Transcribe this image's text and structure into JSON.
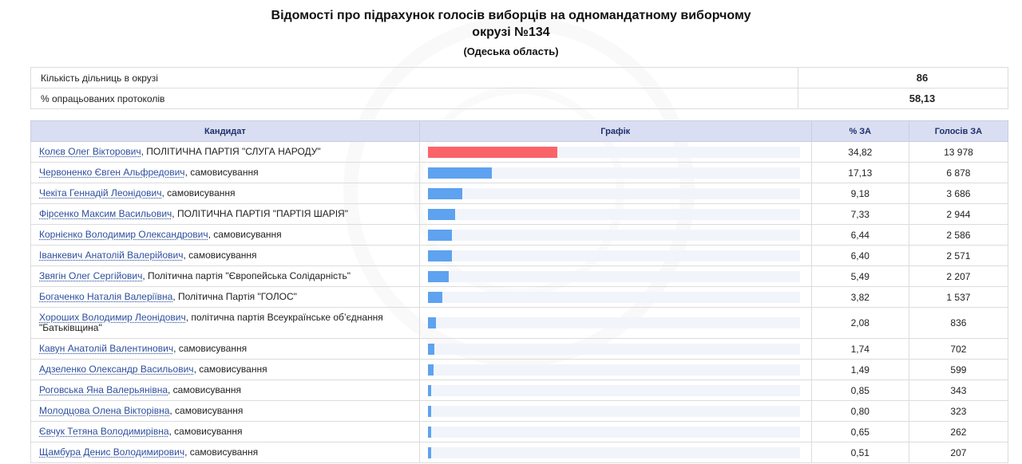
{
  "header": {
    "title": "Відомості про підрахунок голосів виборців на одномандатному виборчому окрузі №134",
    "region": "(Одеська область)"
  },
  "summary": [
    {
      "label": "Кількість дільниць в окрузі",
      "value": "86"
    },
    {
      "label": "% опрацьованих протоколів",
      "value": "58,13"
    }
  ],
  "columns": {
    "candidate": "Кандидат",
    "graph": "Графік",
    "pct": "% ЗА",
    "votes": "Голосів ЗА"
  },
  "colors": {
    "leader_bar": "#fa6469",
    "bar": "#5ea2f0",
    "header_bg": "#d9def2"
  },
  "candidates": [
    {
      "name": "Колєв Олег Вікторович",
      "party": ", ПОЛІТИЧНА ПАРТІЯ \"СЛУГА НАРОДУ\"",
      "pct": "34,82",
      "votes": "13 978",
      "share": 34.82
    },
    {
      "name": "Червоненко Євген Альфредович",
      "party": ", самовисування",
      "pct": "17,13",
      "votes": "6 878",
      "share": 17.13
    },
    {
      "name": "Чекіта Геннадій Леонідович",
      "party": ", самовисування",
      "pct": "9,18",
      "votes": "3 686",
      "share": 9.18
    },
    {
      "name": "Фірсенко Максим Васильович",
      "party": ", ПОЛІТИЧНА ПАРТІЯ \"ПАРТІЯ ШАРІЯ\"",
      "pct": "7,33",
      "votes": "2 944",
      "share": 7.33
    },
    {
      "name": "Корнієнко Володимир Олександрович",
      "party": ", самовисування",
      "pct": "6,44",
      "votes": "2 586",
      "share": 6.44
    },
    {
      "name": "Іванкевич Анатолій Валерійович",
      "party": ", самовисування",
      "pct": "6,40",
      "votes": "2 571",
      "share": 6.4
    },
    {
      "name": "Звягін Олег Сергійович",
      "party": ", Політична партія \"Європейська Солідарність\"",
      "pct": "5,49",
      "votes": "2 207",
      "share": 5.49
    },
    {
      "name": "Богаченко Наталія Валеріївна",
      "party": ", Політична Партія \"ГОЛОС\"",
      "pct": "3,82",
      "votes": "1 537",
      "share": 3.82
    },
    {
      "name": "Хороших Володимир Леонідович",
      "party": ", політична партія Всеукраїнське об’єднання \"Батьківщина\"",
      "pct": "2,08",
      "votes": "836",
      "share": 2.08
    },
    {
      "name": "Кавун Анатолій Валентинович",
      "party": ", самовисування",
      "pct": "1,74",
      "votes": "702",
      "share": 1.74
    },
    {
      "name": "Адзеленко Олександр Васильович",
      "party": ", самовисування",
      "pct": "1,49",
      "votes": "599",
      "share": 1.49
    },
    {
      "name": "Роговська Яна Валерьянівна",
      "party": ", самовисування",
      "pct": "0,85",
      "votes": "343",
      "share": 0.85
    },
    {
      "name": "Молодцова Олена Вікторівна",
      "party": ", самовисування",
      "pct": "0,80",
      "votes": "323",
      "share": 0.8
    },
    {
      "name": "Євчук Тетяна Володимирівна",
      "party": ", самовисування",
      "pct": "0,65",
      "votes": "262",
      "share": 0.65
    },
    {
      "name": "Щамбура Денис Володимирович",
      "party": ", самовисування",
      "pct": "0,51",
      "votes": "207",
      "share": 0.51
    }
  ]
}
